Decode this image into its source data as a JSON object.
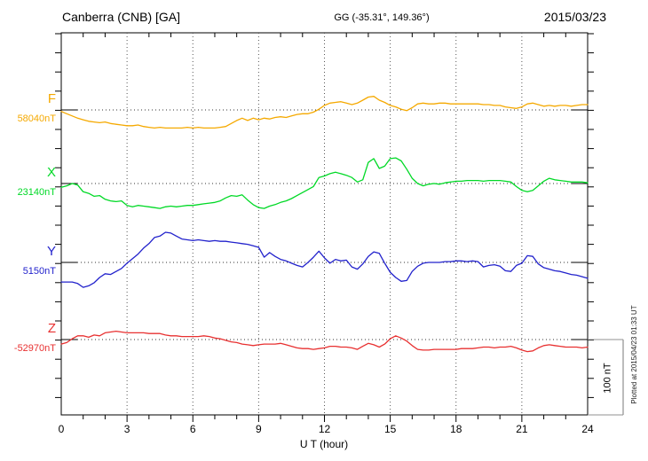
{
  "header": {
    "station_title": "Canberra (CNB)  [GA]",
    "coords": "GG (-35.31°, 149.36°)",
    "date": "2015/03/23"
  },
  "x_axis": {
    "label": "U T (hour)",
    "ticks": [
      0,
      3,
      6,
      9,
      12,
      15,
      18,
      21,
      24
    ]
  },
  "scale_bar": {
    "label": "100 nT",
    "nT": 100
  },
  "footer_note": "Plotted at 2015/04/23 01:33 UT",
  "chart_data": {
    "type": "line",
    "title": "Canberra (CNB) [GA] magnetogram for 2015/03/23",
    "xlabel": "U T (hour)",
    "x_range": [
      0,
      24
    ],
    "x_step_hours": 0.25,
    "grid": "dotted vertical lines every 3 hours; dotted horizontal baseline per component",
    "legend_position": "left baseline labels",
    "scale_note": "vertical bar at right = 100 nT",
    "series": [
      {
        "name": "F",
        "baseline_label": "58040nT",
        "baseline_nT": 58040,
        "color": "#F5A900",
        "offsets_nT": [
          -2,
          -5,
          -8,
          -11,
          -13,
          -15,
          -16,
          -17,
          -16,
          -18,
          -19,
          -20,
          -21,
          -21,
          -20,
          -22,
          -23,
          -24,
          -23,
          -24,
          -24,
          -24,
          -24,
          -23,
          -24,
          -23,
          -24,
          -24,
          -24,
          -23,
          -22,
          -18,
          -14,
          -11,
          -14,
          -11,
          -13,
          -11,
          -12,
          -10,
          -9,
          -10,
          -8,
          -6,
          -5,
          -5,
          -3,
          1,
          6,
          9,
          10,
          11,
          9,
          7,
          9,
          13,
          17,
          18,
          13,
          10,
          6,
          4,
          1,
          -1,
          3,
          8,
          9,
          8,
          8,
          9,
          9,
          8,
          8,
          8,
          8,
          8,
          8,
          7,
          7,
          6,
          6,
          4,
          3,
          2,
          4,
          8,
          9,
          7,
          5,
          6,
          5,
          6,
          6,
          5,
          6,
          7,
          7
        ]
      },
      {
        "name": "X",
        "baseline_label": "23140nT",
        "baseline_nT": 23140,
        "color": "#00D926",
        "offsets_nT": [
          -5,
          -3,
          0,
          -2,
          -11,
          -13,
          -17,
          -16,
          -21,
          -23,
          -24,
          -23,
          -29,
          -31,
          -29,
          -30,
          -31,
          -32,
          -33,
          -31,
          -30,
          -31,
          -30,
          -29,
          -29,
          -28,
          -27,
          -26,
          -25,
          -23,
          -19,
          -16,
          -17,
          -15,
          -22,
          -28,
          -32,
          -33,
          -30,
          -28,
          -25,
          -23,
          -20,
          -16,
          -12,
          -8,
          -4,
          8,
          10,
          13,
          15,
          13,
          11,
          8,
          2,
          5,
          28,
          33,
          20,
          23,
          33,
          34,
          30,
          19,
          7,
          0,
          -3,
          -1,
          0,
          -1,
          1,
          2,
          3,
          3,
          4,
          4,
          4,
          3,
          4,
          4,
          4,
          3,
          2,
          -4,
          -9,
          -11,
          -9,
          -3,
          3,
          7,
          5,
          4,
          3,
          2,
          2,
          2,
          1
        ]
      },
      {
        "name": "Y",
        "baseline_label": "5150nT",
        "baseline_nT": 5150,
        "color": "#2222CC",
        "offsets_nT": [
          -26,
          -26,
          -26,
          -28,
          -33,
          -31,
          -27,
          -20,
          -15,
          -16,
          -12,
          -8,
          -1,
          5,
          11,
          19,
          25,
          33,
          35,
          40,
          39,
          35,
          31,
          30,
          29,
          30,
          29,
          28,
          29,
          28,
          28,
          27,
          26,
          25,
          24,
          22,
          20,
          7,
          13,
          8,
          4,
          2,
          -1,
          -4,
          -6,
          0,
          7,
          15,
          6,
          -1,
          4,
          2,
          3,
          -6,
          -9,
          -2,
          8,
          14,
          12,
          -1,
          -13,
          -20,
          -25,
          -24,
          -12,
          -5,
          -1,
          0,
          0,
          0,
          1,
          1,
          2,
          2,
          1,
          2,
          1,
          -6,
          -4,
          -3,
          -5,
          -11,
          -12,
          -4,
          -1,
          9,
          8,
          -2,
          -7,
          -9,
          -11,
          -12,
          -14,
          -16,
          -17,
          -19,
          -21
        ]
      },
      {
        "name": "Z",
        "baseline_label": "-52970nT",
        "baseline_nT": -52970,
        "color": "#E83030",
        "offsets_nT": [
          -6,
          -4,
          1,
          5,
          5,
          3,
          6,
          5,
          9,
          10,
          11,
          10,
          9,
          9,
          9,
          9,
          8,
          8,
          8,
          6,
          5,
          5,
          4,
          4,
          4,
          4,
          5,
          4,
          2,
          1,
          -1,
          -3,
          -4,
          -6,
          -7,
          -8,
          -7,
          -6,
          -6,
          -6,
          -5,
          -7,
          -9,
          -11,
          -12,
          -12,
          -13,
          -12,
          -11,
          -9,
          -9,
          -10,
          -10,
          -11,
          -13,
          -9,
          -5,
          -7,
          -10,
          -6,
          1,
          5,
          2,
          -2,
          -8,
          -13,
          -14,
          -14,
          -13,
          -13,
          -13,
          -13,
          -13,
          -12,
          -12,
          -12,
          -11,
          -10,
          -10,
          -11,
          -10,
          -10,
          -9,
          -11,
          -14,
          -16,
          -15,
          -11,
          -8,
          -7,
          -8,
          -9,
          -10,
          -10,
          -10,
          -11,
          -10
        ]
      }
    ]
  }
}
